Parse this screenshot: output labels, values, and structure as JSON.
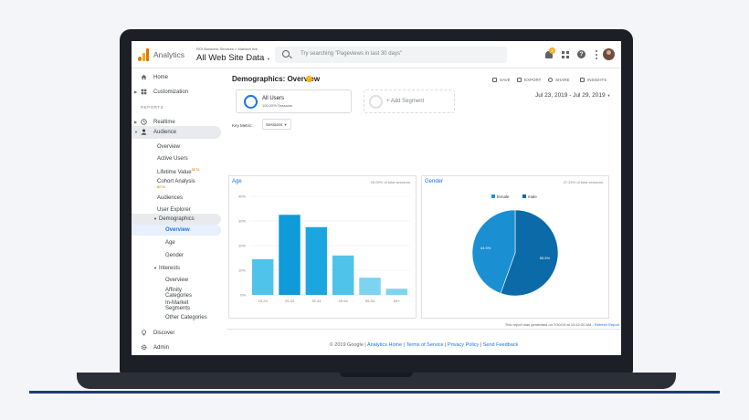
{
  "app": {
    "name": "Analytics",
    "account_path": "ROI Business Services > Martech live",
    "property": "All Web Site Data",
    "search_placeholder": "Try searching \"Pageviews in last 30 days\"",
    "notification_count": "2"
  },
  "sidebar": {
    "home": "Home",
    "customization": "Customization",
    "reports_label": "REPORTS",
    "realtime": "Realtime",
    "audience": "Audience",
    "audience_items": [
      "Overview",
      "Active Users",
      "Lifetime Value",
      "Cohort Analysis",
      "Audiences",
      "User Explorer"
    ],
    "beta_tag": "BETA",
    "demographics": "Demographics",
    "demographics_items": [
      "Overview",
      "Age",
      "Gender"
    ],
    "interests": "Interests",
    "interests_items": [
      "Overview",
      "Affinity Categories",
      "In-Market Segments",
      "Other Categories"
    ],
    "discover": "Discover",
    "admin": "Admin"
  },
  "header": {
    "title": "Demographics: Overview",
    "actions": [
      "SAVE",
      "EXPORT",
      "SHARE",
      "INSIGHTS"
    ],
    "date_range": "Jul 23, 2019 - Jul 29, 2019"
  },
  "segments": {
    "active_name": "All Users",
    "active_sub": "100.00% Sessions",
    "add_label": "+ Add Segment"
  },
  "key_metric": {
    "label": "Key Metric:",
    "value": "Sessions"
  },
  "age_card": {
    "title": "Age",
    "note": "26.09% of total sessions"
  },
  "gender_card": {
    "title": "Gender",
    "note": "27.24% of total sessions"
  },
  "chart_data": [
    {
      "type": "bar",
      "categories": [
        "18-24",
        "25-34",
        "35-44",
        "45-54",
        "55-64",
        "65+"
      ],
      "values": [
        14.5,
        32.5,
        27.5,
        16,
        7,
        2.5
      ],
      "yticks": [
        "0%",
        "10%",
        "20%",
        "30%",
        "40%"
      ],
      "ylim": [
        0,
        40
      ],
      "grid": true,
      "color": "#4fc3ea"
    },
    {
      "type": "pie",
      "labels": [
        "female",
        "male"
      ],
      "values": [
        44.5,
        55.5
      ],
      "data_labels": [
        "44.5%",
        "55.5%"
      ],
      "colors": [
        "#1a8fd2",
        "#0b6aa8"
      ],
      "legend": "top"
    }
  ],
  "report": {
    "note": "This report was generated on 7/30/19 at 10:42:00 AM - ",
    "refresh": "Refresh Report"
  },
  "footer": {
    "copyright": "© 2019 Google | ",
    "links": [
      "Analytics Home",
      "Terms of Service",
      "Privacy Policy",
      "Send Feedback"
    ]
  }
}
